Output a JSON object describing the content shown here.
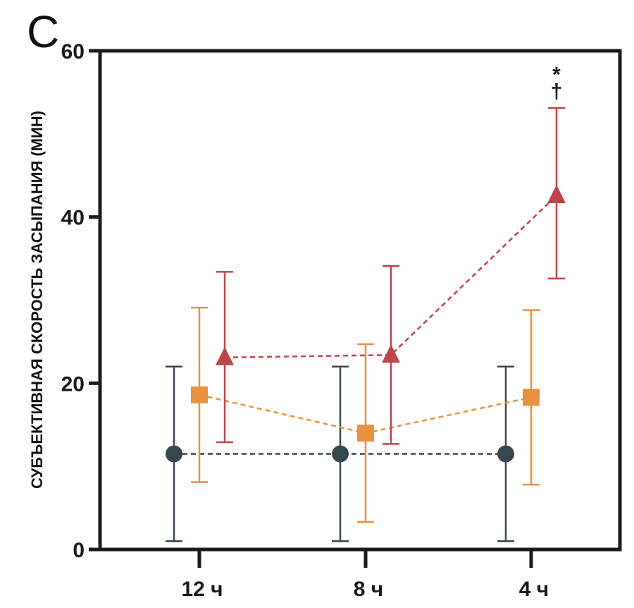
{
  "chart_data": {
    "type": "line",
    "panel_label": "C",
    "ylabel": "СУБЪЕКТИВНАЯ СКОРОСТЬ ЗАСЫПАНИЯ (МИН)",
    "xlabel": "",
    "categories": [
      "12 ч",
      "8 ч",
      "4 ч"
    ],
    "ylim": [
      0,
      60
    ],
    "yticks": [
      "0",
      "20",
      "40",
      "60"
    ],
    "grid": false,
    "series": [
      {
        "marker": "circle",
        "color": "#37474f",
        "values": [
          11.5,
          11.5,
          11.5
        ],
        "err_low": [
          1.0,
          1.0,
          1.0
        ],
        "err_high": [
          22.0,
          22.0,
          22.0
        ]
      },
      {
        "marker": "square",
        "color": "#e8913e",
        "values": [
          18.6,
          14.0,
          18.3
        ],
        "err_low": [
          8.1,
          3.3,
          7.8
        ],
        "err_high": [
          29.1,
          24.7,
          28.8
        ]
      },
      {
        "marker": "triangle",
        "color": "#c0434a",
        "values": [
          23.1,
          23.4,
          42.6
        ],
        "err_low": [
          12.9,
          12.7,
          32.6
        ],
        "err_high": [
          33.4,
          34.1,
          53.1
        ]
      }
    ],
    "annotations": [
      {
        "category": "4 ч",
        "text": "*"
      },
      {
        "category": "4 ч",
        "text": "†"
      }
    ]
  }
}
